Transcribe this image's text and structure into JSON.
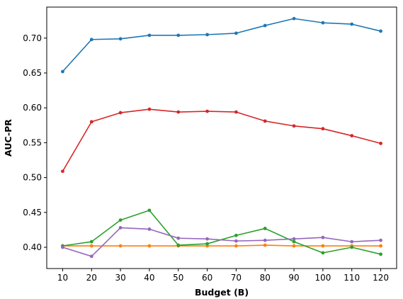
{
  "chart_data": {
    "type": "line",
    "title": "",
    "xlabel": "Budget (B)",
    "ylabel": "AUC-PR",
    "x": [
      10,
      20,
      30,
      40,
      50,
      60,
      70,
      80,
      90,
      100,
      110,
      120
    ],
    "xticks": [
      "10",
      "20",
      "30",
      "40",
      "50",
      "60",
      "70",
      "80",
      "90",
      "100",
      "110",
      "120"
    ],
    "yticks": [
      "0.40",
      "0.45",
      "0.50",
      "0.55",
      "0.60",
      "0.65",
      "0.70"
    ],
    "xlim": [
      4.5,
      125.5
    ],
    "ylim": [
      0.3695,
      0.7445
    ],
    "grid": false,
    "series": [
      {
        "color": "#1f77b4",
        "values": [
          0.652,
          0.698,
          0.699,
          0.704,
          0.704,
          0.705,
          0.707,
          0.718,
          0.728,
          0.722,
          0.72,
          0.71
        ]
      },
      {
        "color": "#ff7f0e",
        "values": [
          0.402,
          0.402,
          0.402,
          0.402,
          0.402,
          0.402,
          0.402,
          0.403,
          0.402,
          0.402,
          0.402,
          0.402
        ]
      },
      {
        "color": "#2ca02c",
        "values": [
          0.402,
          0.408,
          0.439,
          0.453,
          0.403,
          0.405,
          0.417,
          0.427,
          0.408,
          0.392,
          0.4,
          0.39
        ]
      },
      {
        "color": "#d62728",
        "values": [
          0.509,
          0.58,
          0.593,
          0.598,
          0.594,
          0.595,
          0.594,
          0.581,
          0.574,
          0.57,
          0.56,
          0.549
        ]
      },
      {
        "color": "#9467bd",
        "values": [
          0.4,
          0.387,
          0.428,
          0.426,
          0.413,
          0.412,
          0.409,
          0.41,
          0.412,
          0.414,
          0.408,
          0.41
        ]
      }
    ]
  }
}
